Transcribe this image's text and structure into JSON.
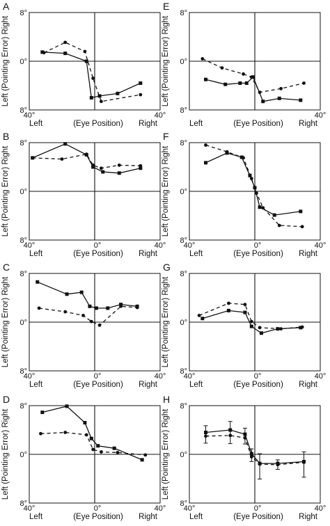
{
  "figure": {
    "ylabel": "Left (Pointing Error) Right",
    "x_left_label": "Left",
    "x_center_label": "(Eye Position)",
    "x_right_label": "Right"
  },
  "chart_data": [
    {
      "panel": "A",
      "type": "line",
      "xlim": [
        -40,
        40
      ],
      "ylim": [
        -8,
        8
      ],
      "x_tick_labels": [
        "40°",
        "40°"
      ],
      "y_tick_labels": [
        "8°",
        "0°",
        "8°"
      ],
      "series": [
        {
          "style": "solid",
          "marker": "square",
          "x": [
            -32,
            -18,
            -5,
            -2,
            3,
            14,
            28
          ],
          "y": [
            1.5,
            1.3,
            0,
            -6,
            -5.7,
            -5.3,
            -3.6
          ]
        },
        {
          "style": "dashed",
          "marker": "circle",
          "x": [
            -31,
            -18,
            -6,
            -1,
            4,
            28
          ],
          "y": [
            1.4,
            3.1,
            1.6,
            -2.8,
            -6.6,
            -5.5
          ]
        }
      ]
    },
    {
      "panel": "B",
      "type": "line",
      "xlim": [
        -40,
        40
      ],
      "ylim": [
        -8,
        8
      ],
      "x_tick_labels": [
        "40°",
        "0°",
        "40°"
      ],
      "y_tick_labels": [
        "8°",
        "0°",
        "8°"
      ],
      "series": [
        {
          "style": "solid",
          "marker": "square",
          "x": [
            -38,
            -18,
            -5,
            -1,
            5,
            15,
            28
          ],
          "y": [
            5.5,
            7.8,
            6,
            4,
            3.2,
            3,
            3.8
          ]
        },
        {
          "style": "dashed",
          "marker": "circle",
          "x": [
            -38,
            -20,
            -5,
            -1,
            4,
            15,
            28
          ],
          "y": [
            5.5,
            5.3,
            6.1,
            4.3,
            3.8,
            4.3,
            4.2
          ]
        }
      ]
    },
    {
      "panel": "C",
      "type": "line",
      "xlim": [
        -40,
        40
      ],
      "ylim": [
        -8,
        8
      ],
      "x_tick_labels": [
        "40°",
        "0°",
        "40°"
      ],
      "y_tick_labels": [
        "8°",
        "0°",
        "8°"
      ],
      "series": [
        {
          "style": "solid",
          "marker": "square",
          "x": [
            -35,
            -17,
            -8,
            -3,
            1,
            8,
            16,
            26
          ],
          "y": [
            6.6,
            4.6,
            4.9,
            2.6,
            2.3,
            2.3,
            2.9,
            2.6
          ]
        },
        {
          "style": "dashed",
          "marker": "circle",
          "x": [
            -34,
            -18,
            -7,
            -2,
            3,
            16,
            26
          ],
          "y": [
            2.3,
            1.7,
            1.1,
            0.1,
            -0.5,
            2.6,
            2.4
          ]
        }
      ]
    },
    {
      "panel": "D",
      "type": "line",
      "xlim": [
        -40,
        40
      ],
      "ylim": [
        -8,
        8
      ],
      "x_tick_labels": [
        "40°",
        "0°",
        "40°"
      ],
      "y_tick_labels": [
        "8°",
        "0°",
        "8°"
      ],
      "series": [
        {
          "style": "solid",
          "marker": "square",
          "x": [
            -32,
            -17,
            -6,
            -2,
            2,
            12,
            29
          ],
          "y": [
            6.9,
            7.9,
            5.2,
            2.6,
            1.4,
            1.0,
            -0.9
          ]
        },
        {
          "style": "dashed",
          "marker": "circle",
          "x": [
            -33,
            -18,
            -5,
            -1,
            4,
            14,
            31
          ],
          "y": [
            3.4,
            3.6,
            3.2,
            0.8,
            0.4,
            0.3,
            -0.1
          ]
        }
      ]
    },
    {
      "panel": "E",
      "type": "line",
      "xlim": [
        -40,
        40
      ],
      "ylim": [
        -8,
        8
      ],
      "x_tick_labels": [
        "40°"
      ],
      "y_tick_labels": [
        "8°",
        "0°",
        "8°"
      ],
      "series": [
        {
          "style": "solid",
          "marker": "square",
          "x": [
            -30,
            -18,
            -9,
            -5,
            -1,
            5,
            15,
            28
          ],
          "y": [
            -3,
            -3.8,
            -3.6,
            -3.6,
            -2.6,
            -6.6,
            -6.1,
            -6.4
          ]
        },
        {
          "style": "dashed",
          "marker": "circle",
          "x": [
            -32,
            -20,
            -7,
            -2,
            3,
            16,
            30
          ],
          "y": [
            0.4,
            -1.1,
            -2.1,
            -2.6,
            -5.1,
            -4.5,
            -3.6
          ]
        }
      ]
    },
    {
      "panel": "F",
      "type": "line",
      "xlim": [
        -40,
        40
      ],
      "ylim": [
        -8,
        8
      ],
      "x_tick_labels": [
        "40°",
        "0°",
        "40°"
      ],
      "y_tick_labels": [
        "8°",
        "0°",
        "8°"
      ],
      "series": [
        {
          "style": "solid",
          "marker": "square",
          "x": [
            -30,
            -17,
            -8,
            -3,
            0,
            3,
            12,
            28
          ],
          "y": [
            4.7,
            6.3,
            5.6,
            2.6,
            0.6,
            -2.6,
            -3.9,
            -3.3
          ]
        },
        {
          "style": "dashed",
          "marker": "circle",
          "x": [
            -30,
            -17,
            -7,
            -2,
            1,
            5,
            15,
            29
          ],
          "y": [
            7.6,
            6.5,
            5.5,
            2.1,
            -0.3,
            -2.7,
            -5.6,
            -5.8
          ]
        }
      ]
    },
    {
      "panel": "G",
      "type": "line",
      "xlim": [
        -40,
        40
      ],
      "ylim": [
        -8,
        8
      ],
      "x_tick_labels": [
        "40°",
        "0°",
        "40°"
      ],
      "y_tick_labels": [
        "8°",
        "0°",
        "8°"
      ],
      "series": [
        {
          "style": "solid",
          "marker": "square",
          "x": [
            -32,
            -16,
            -6,
            -2,
            4,
            14,
            28
          ],
          "y": [
            0.6,
            1.9,
            1.6,
            -0.7,
            -1.8,
            -1.1,
            -0.9
          ]
        },
        {
          "style": "dashed",
          "marker": "circle",
          "x": [
            -34,
            -16,
            -6,
            -2,
            3,
            16,
            29
          ],
          "y": [
            1.1,
            3.1,
            2.9,
            0.1,
            -0.9,
            -1.1,
            -0.8
          ]
        }
      ]
    },
    {
      "panel": "H",
      "type": "line",
      "xlim": [
        -40,
        40
      ],
      "ylim": [
        -8,
        8
      ],
      "x_tick_labels": [
        "40°",
        "0°",
        "40°"
      ],
      "y_tick_labels": [
        "8°",
        "0°",
        "8°"
      ],
      "series": [
        {
          "style": "solid",
          "marker": "square",
          "x": [
            -30,
            -15,
            -6,
            -2,
            3,
            14,
            30
          ],
          "y": [
            3.6,
            4.0,
            3.3,
            0.1,
            -1.5,
            -1.5,
            -1.2
          ]
        },
        {
          "style": "dashed",
          "marker": "circle",
          "x": [
            -30,
            -15,
            -6,
            -2,
            3,
            14,
            30
          ],
          "y": [
            3.0,
            3.1,
            2.7,
            -0.4,
            -1.6,
            -1.7,
            -1.3
          ]
        }
      ]
    }
  ]
}
